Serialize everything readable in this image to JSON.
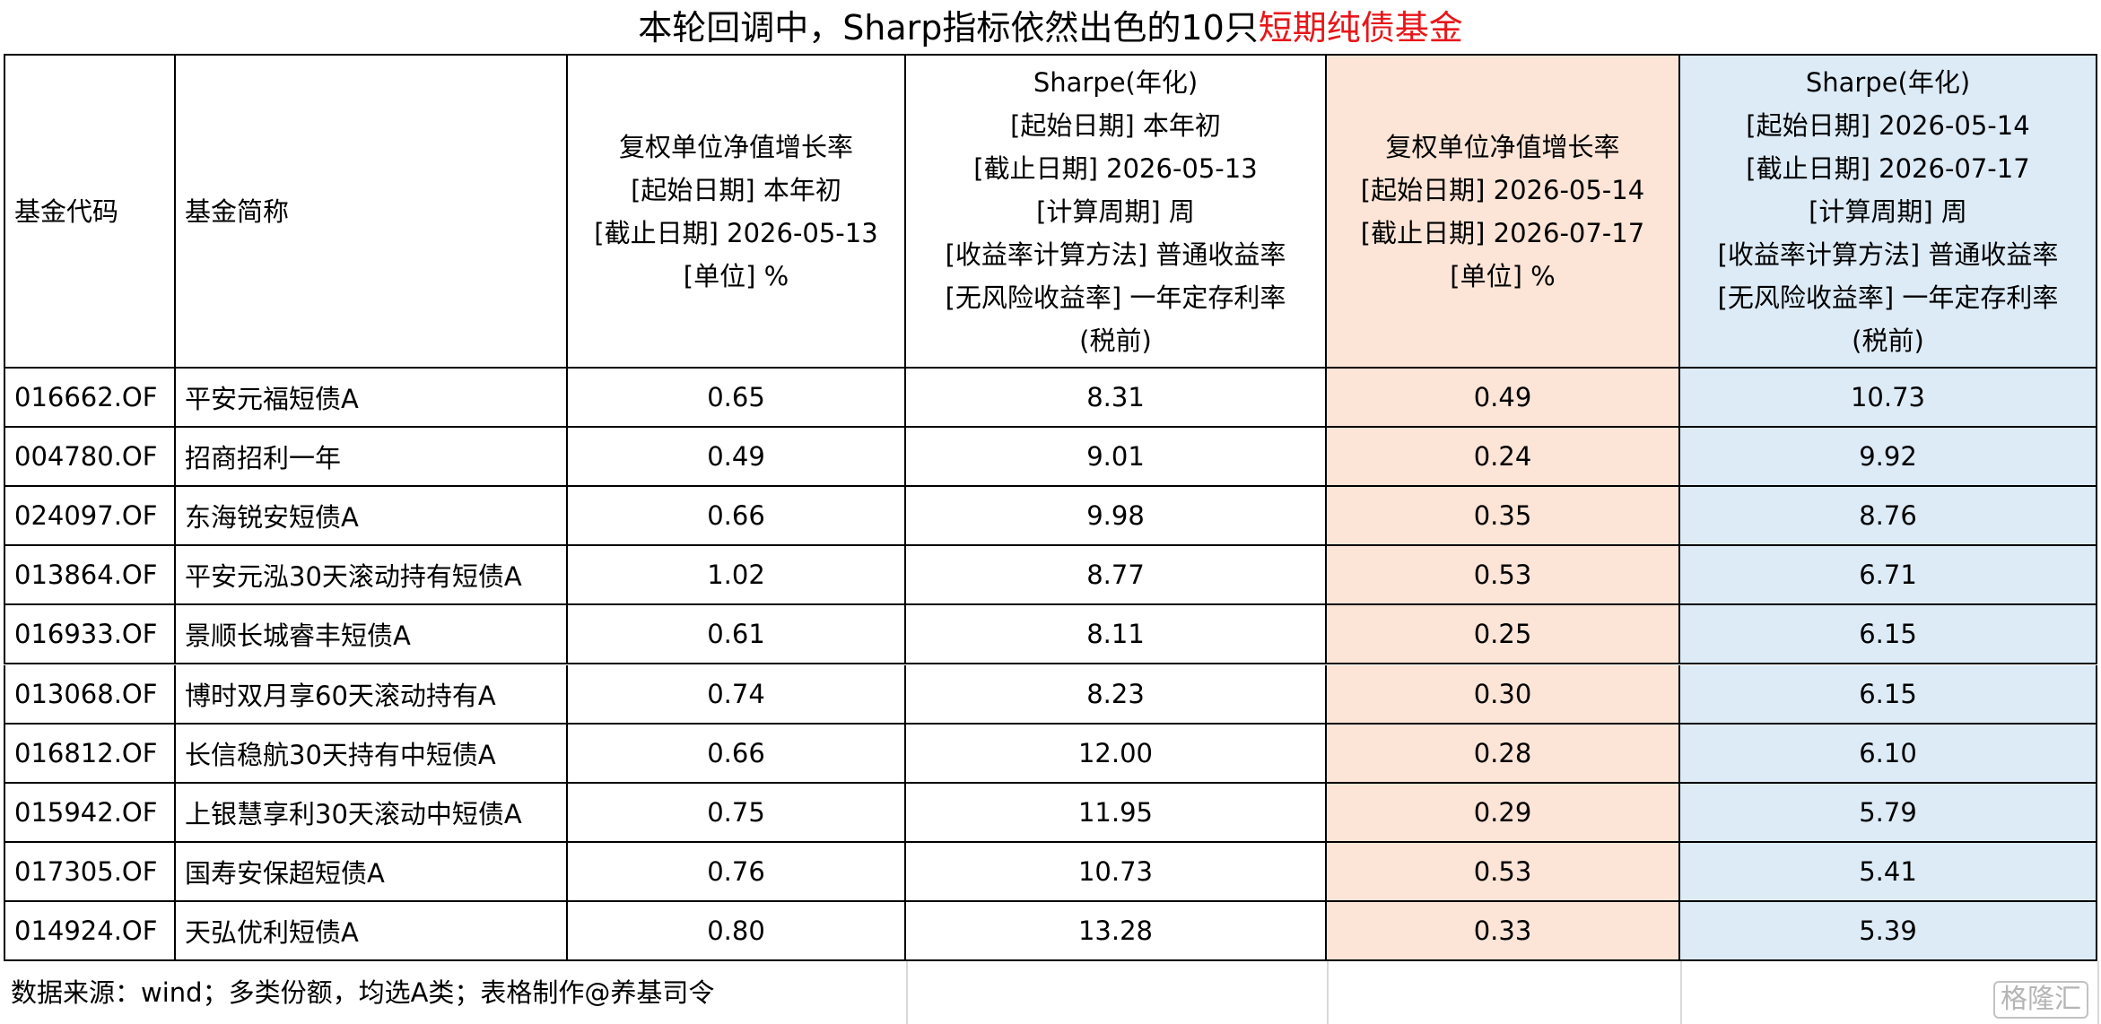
{
  "title": {
    "text": "本轮回调中，Sharp指标依然出色的10只",
    "highlight": "短期纯债基金"
  },
  "table": {
    "headers": [
      [
        "基金代码"
      ],
      [
        "基金简称"
      ],
      [
        "复权单位净值增长率",
        "[起始日期] 本年初",
        "[截止日期] 2026-05-13",
        "[单位] %"
      ],
      [
        "Sharpe(年化)",
        "[起始日期] 本年初",
        "[截止日期] 2026-05-13",
        "[计算周期] 周",
        "[收益率计算方法] 普通收益率",
        "[无风险收益率] 一年定存利率",
        "(税前)"
      ],
      [
        "复权单位净值增长率",
        "[起始日期] 2026-05-14",
        "[截止日期] 2026-07-17",
        "[单位] %"
      ],
      [
        "Sharpe(年化)",
        "[起始日期] 2026-05-14",
        "[截止日期] 2026-07-17",
        "[计算周期] 周",
        "[收益率计算方法] 普通收益率",
        "[无风险收益率] 一年定存利率",
        "(税前)"
      ]
    ],
    "rows": [
      [
        "016662.OF",
        "平安元福短债A",
        "0.65",
        "8.31",
        "0.49",
        "10.73"
      ],
      [
        "004780.OF",
        "招商招利一年",
        "0.49",
        "9.01",
        "0.24",
        "9.92"
      ],
      [
        "024097.OF",
        "东海锐安短债A",
        "0.66",
        "9.98",
        "0.35",
        "8.76"
      ],
      [
        "013864.OF",
        "平安元泓30天滚动持有短债A",
        "1.02",
        "8.77",
        "0.53",
        "6.71"
      ],
      [
        "016933.OF",
        "景顺长城睿丰短债A",
        "0.61",
        "8.11",
        "0.25",
        "6.15"
      ],
      [
        "013068.OF",
        "博时双月享60天滚动持有A",
        "0.74",
        "8.23",
        "0.30",
        "6.15"
      ],
      [
        "016812.OF",
        "长信稳航30天持有中短债A",
        "0.66",
        "12.00",
        "0.28",
        "6.10"
      ],
      [
        "015942.OF",
        "上银慧享利30天滚动中短债A",
        "0.75",
        "11.95",
        "0.29",
        "5.79"
      ],
      [
        "017305.OF",
        "国寿安保超短债A",
        "0.76",
        "10.73",
        "0.53",
        "5.41"
      ],
      [
        "014924.OF",
        "天弘优利短债A",
        "0.80",
        "13.28",
        "0.33",
        "5.39"
      ]
    ]
  },
  "footer": "数据来源：wind；多类份额，均选A类；表格制作@养基司令",
  "watermark": "格隆汇"
}
